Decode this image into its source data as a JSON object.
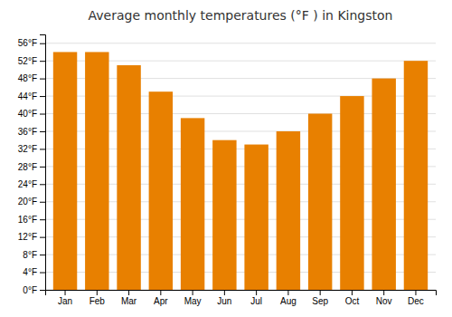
{
  "chart_data": {
    "type": "bar",
    "title": "Average monthly temperatures (°F ) in Kingston",
    "categories": [
      "Jan",
      "Feb",
      "Mar",
      "Apr",
      "May",
      "Jun",
      "Jul",
      "Aug",
      "Sep",
      "Oct",
      "Nov",
      "Dec"
    ],
    "values": [
      54,
      54,
      51,
      45,
      39,
      34,
      33,
      36,
      40,
      44,
      48,
      52
    ],
    "color": "#E88000",
    "ylim": [
      0,
      58
    ],
    "yticks": [
      {
        "value": 0,
        "label": "0°F"
      },
      {
        "value": 4,
        "label": "4°F"
      },
      {
        "value": 8,
        "label": "8°F"
      },
      {
        "value": 12,
        "label": "12°F"
      },
      {
        "value": 16,
        "label": "16°F"
      },
      {
        "value": 20,
        "label": "20°F"
      },
      {
        "value": 24,
        "label": "24°F"
      },
      {
        "value": 28,
        "label": "28°F"
      },
      {
        "value": 32,
        "label": "32°F"
      },
      {
        "value": 36,
        "label": "36°F"
      },
      {
        "value": 40,
        "label": "40°F"
      },
      {
        "value": 44,
        "label": "44°F"
      },
      {
        "value": 48,
        "label": "48°F"
      },
      {
        "value": 52,
        "label": "52°F"
      },
      {
        "value": 56,
        "label": "56°F"
      }
    ],
    "grid": true
  }
}
